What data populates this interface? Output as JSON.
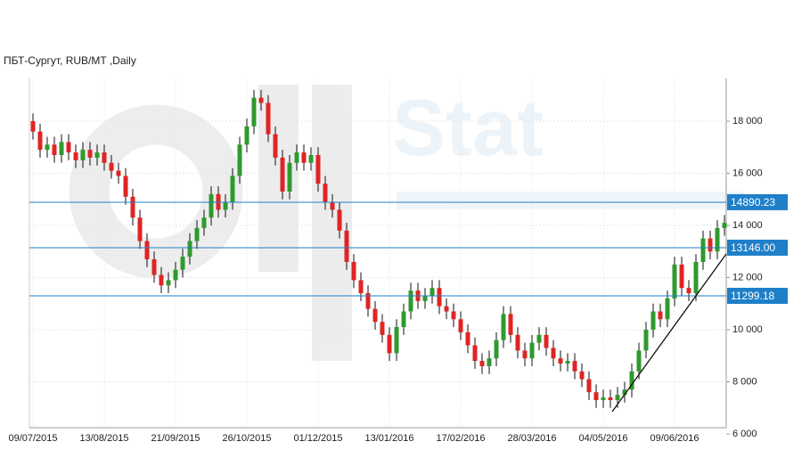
{
  "chart_data": {
    "type": "candlestick",
    "title": "ПБТ-Сургут,  RUB/MT ,Daily",
    "watermark": "Stat",
    "categories": [
      "09/07/2015",
      null,
      null,
      null,
      null,
      null,
      null,
      null,
      null,
      null,
      "13/08/2015",
      null,
      null,
      null,
      null,
      null,
      null,
      null,
      null,
      null,
      "21/09/2015",
      null,
      null,
      null,
      null,
      null,
      null,
      null,
      null,
      null,
      "26/10/2015",
      null,
      null,
      null,
      null,
      null,
      null,
      null,
      null,
      null,
      "01/12/2015",
      null,
      null,
      null,
      null,
      null,
      null,
      null,
      null,
      null,
      "13/01/2016",
      null,
      null,
      null,
      null,
      null,
      null,
      null,
      null,
      null,
      "17/02/2016",
      null,
      null,
      null,
      null,
      null,
      null,
      null,
      null,
      null,
      "28/03/2016",
      null,
      null,
      null,
      null,
      null,
      null,
      null,
      null,
      null,
      "04/05/2016",
      null,
      null,
      null,
      null,
      null,
      null,
      null,
      null,
      null,
      "09/06/2016",
      null,
      null,
      null,
      null,
      null,
      null,
      null
    ],
    "open": [
      18000,
      17600,
      16900,
      17100,
      16700,
      17200,
      16800,
      16500,
      16900,
      16600,
      16800,
      16400,
      16100,
      15900,
      15100,
      14300,
      13400,
      12700,
      12100,
      11700,
      11900,
      12300,
      12800,
      13400,
      13900,
      14300,
      15200,
      14600,
      14900,
      15900,
      17100,
      17800,
      18900,
      18700,
      17500,
      16600,
      15300,
      16400,
      16800,
      16400,
      16700,
      15600,
      14900,
      14600,
      13800,
      12600,
      11900,
      11400,
      10800,
      10300,
      9800,
      9100,
      10100,
      10700,
      11500,
      11100,
      11300,
      11600,
      10900,
      10700,
      10400,
      9900,
      9400,
      8800,
      8600,
      8900,
      9600,
      10600,
      9800,
      9200,
      8900,
      9500,
      9800,
      9300,
      8900,
      8700,
      8800,
      8400,
      8100,
      7600,
      7300,
      7400,
      7300,
      7500,
      7700,
      8400,
      9200,
      10000,
      10700,
      10400,
      11200,
      12500,
      11600,
      11400,
      12600,
      13500,
      13000,
      13900
    ],
    "high": [
      18300,
      17900,
      17400,
      17400,
      17500,
      17500,
      17100,
      17200,
      17200,
      17100,
      17100,
      16700,
      16400,
      16200,
      15400,
      14600,
      13700,
      13000,
      12400,
      12200,
      12600,
      13100,
      13700,
      14200,
      14600,
      15500,
      15500,
      15200,
      16200,
      17400,
      18100,
      19200,
      19200,
      19000,
      17800,
      16900,
      16700,
      17100,
      17100,
      17000,
      17000,
      15900,
      15200,
      14900,
      14100,
      12900,
      12200,
      11700,
      11100,
      10600,
      10100,
      10400,
      11000,
      11800,
      11800,
      11600,
      11900,
      11900,
      11200,
      11000,
      10700,
      10200,
      9700,
      9100,
      9200,
      9900,
      10900,
      10900,
      10100,
      9500,
      9800,
      10100,
      10100,
      9600,
      9200,
      9100,
      9100,
      8700,
      8400,
      7900,
      7700,
      7700,
      7800,
      8000,
      8700,
      9500,
      10300,
      11000,
      11000,
      11500,
      12800,
      12800,
      11900,
      12900,
      13800,
      13800,
      14200,
      14400
    ],
    "low": [
      17300,
      16600,
      16600,
      16400,
      16400,
      16500,
      16200,
      16200,
      16300,
      16300,
      16100,
      15800,
      15600,
      14800,
      14000,
      13100,
      12400,
      11800,
      11400,
      11400,
      11600,
      12000,
      12500,
      13100,
      13600,
      14000,
      14300,
      14300,
      14600,
      15600,
      16800,
      17500,
      18400,
      17200,
      16300,
      15000,
      15000,
      16100,
      16100,
      16100,
      15300,
      14600,
      14300,
      13500,
      12300,
      11600,
      11100,
      10500,
      10000,
      9500,
      8800,
      8800,
      9800,
      10400,
      10800,
      10800,
      11000,
      10600,
      10400,
      10100,
      9600,
      9100,
      8500,
      8300,
      8300,
      8600,
      9300,
      9500,
      8900,
      8600,
      8600,
      9200,
      9000,
      8600,
      8400,
      8400,
      8100,
      7800,
      7300,
      7000,
      7000,
      7000,
      7000,
      7200,
      7400,
      8100,
      8900,
      9700,
      10100,
      10100,
      10900,
      11300,
      11100,
      11100,
      12300,
      12700,
      12700,
      13600
    ],
    "close": [
      17600,
      16900,
      17100,
      16700,
      17200,
      16800,
      16500,
      16900,
      16600,
      16800,
      16400,
      16100,
      15900,
      15100,
      14300,
      13400,
      12700,
      12100,
      11700,
      11900,
      12300,
      12800,
      13400,
      13900,
      14300,
      15200,
      14600,
      14900,
      15900,
      17100,
      17800,
      18900,
      18700,
      17500,
      16600,
      15300,
      16400,
      16800,
      16400,
      16700,
      15600,
      14900,
      14600,
      13800,
      12600,
      11900,
      11400,
      10800,
      10300,
      9800,
      9100,
      10100,
      10700,
      11500,
      11100,
      11300,
      11600,
      10900,
      10700,
      10400,
      9900,
      9400,
      8800,
      8600,
      8900,
      9600,
      10600,
      9800,
      9200,
      8900,
      9500,
      9800,
      9300,
      8900,
      8700,
      8800,
      8400,
      8100,
      7600,
      7300,
      7400,
      7300,
      7500,
      7700,
      8400,
      9200,
      10000,
      10700,
      10400,
      11200,
      12500,
      11600,
      11400,
      12600,
      13500,
      13000,
      13900,
      14100
    ],
    "up_color": "#2e9a2e",
    "down_color": "#e02424",
    "wick_color": "#111111",
    "ylim": [
      6000,
      19640
    ],
    "yticks": [
      {
        "value": 6000,
        "label": "6 000"
      },
      {
        "value": 8000,
        "label": "8 000"
      },
      {
        "value": 10000,
        "label": "10 000"
      },
      {
        "value": 12000,
        "label": "12 000"
      },
      {
        "value": 14000,
        "label": "14 000"
      },
      {
        "value": 16000,
        "label": "16 000"
      },
      {
        "value": 18000,
        "label": "18 000"
      }
    ],
    "levels": [
      {
        "value": 14890.23,
        "label": "14890.23"
      },
      {
        "value": 13146,
        "label": "13146.00"
      },
      {
        "value": 11299.18,
        "label": "11299.18"
      }
    ],
    "level_color": "#1f7fc8",
    "trendline": [
      6855,
      12906
    ],
    "grid": true
  }
}
